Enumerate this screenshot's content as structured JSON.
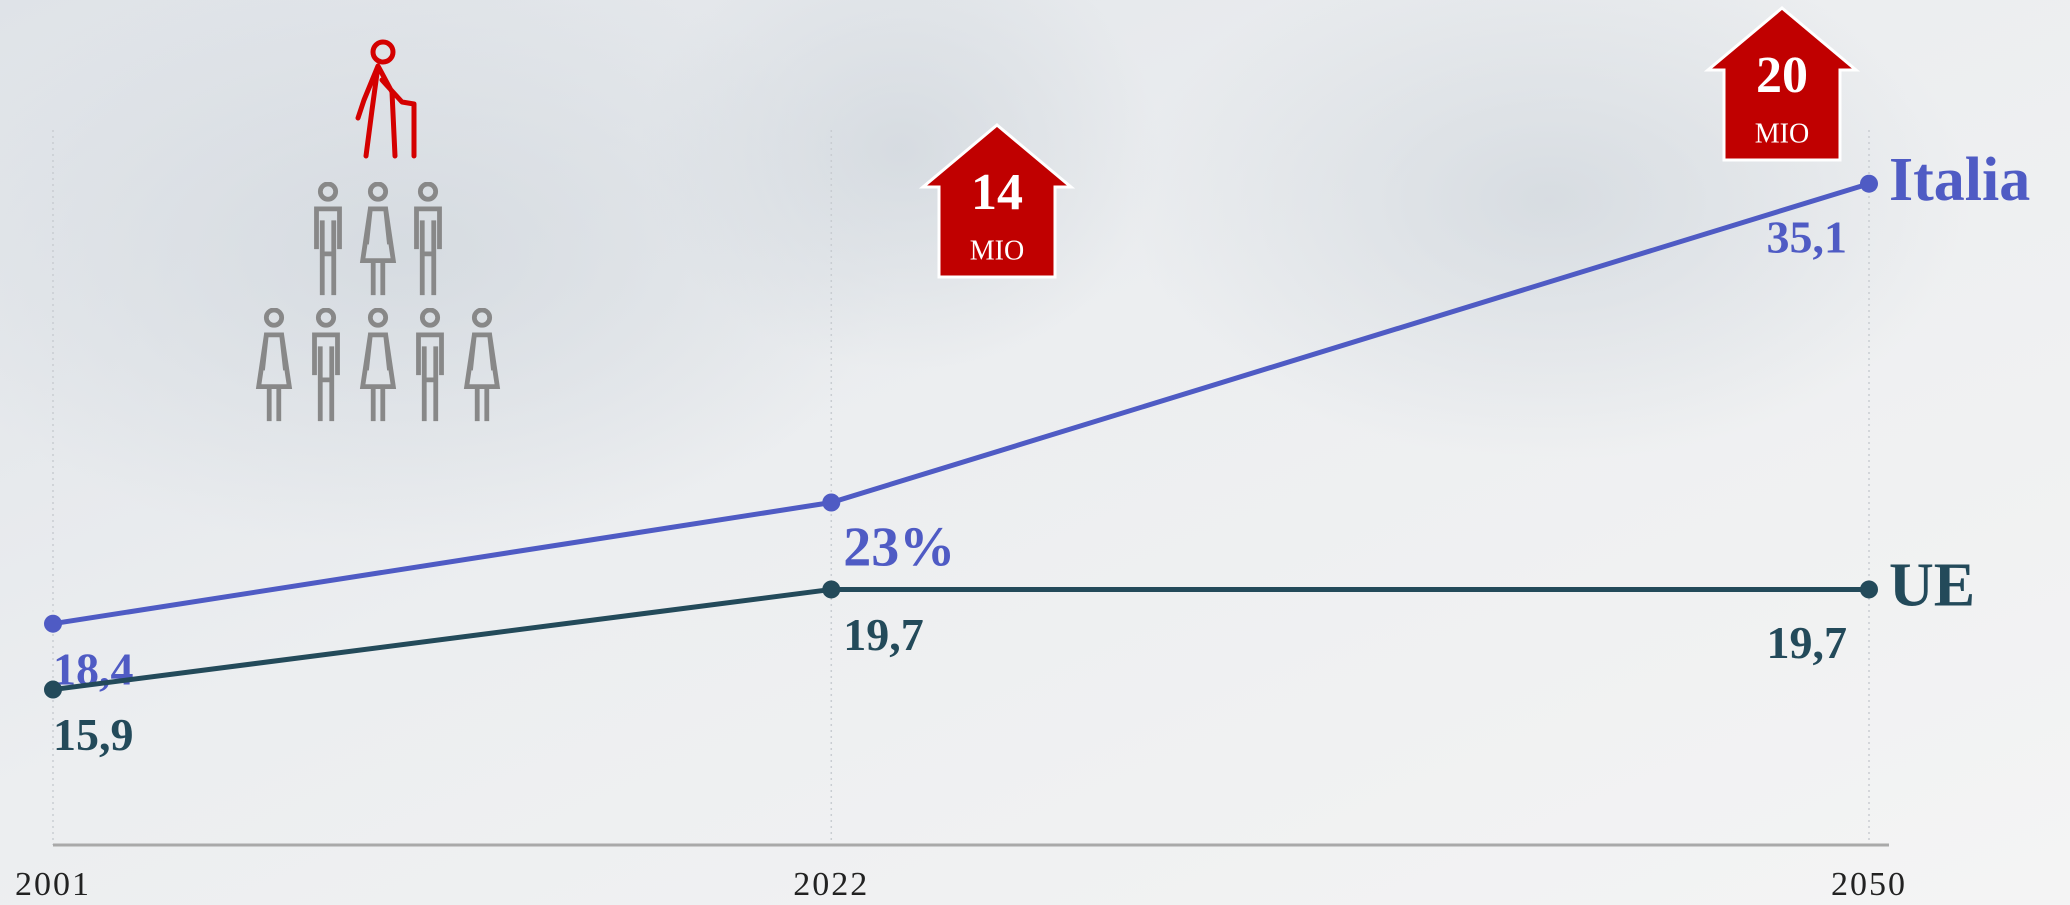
{
  "chart_data": {
    "type": "line",
    "x": [
      2001,
      2022,
      2050
    ],
    "xlim": [
      2001,
      2050
    ],
    "xticks": [
      2001,
      2022,
      2050
    ],
    "ylim": [
      10,
      36
    ],
    "grid": true,
    "series": [
      {
        "name": "Italia",
        "color": "#4f5bc4",
        "values": [
          18.4,
          23,
          35.1
        ],
        "value_labels": [
          "18,4",
          "23%",
          "35,1"
        ]
      },
      {
        "name": "UE",
        "color": "#234a5a",
        "values": [
          15.9,
          19.7,
          19.7
        ],
        "value_labels": [
          "15,9",
          "19,7",
          "19,7"
        ]
      }
    ],
    "annotations": [
      {
        "number": "14",
        "unit": "MIO"
      },
      {
        "number": "20",
        "unit": "MIO"
      }
    ]
  }
}
